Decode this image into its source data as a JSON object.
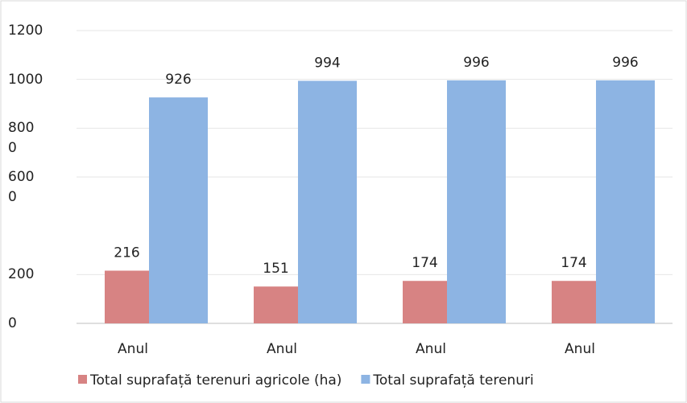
{
  "chart_data": {
    "type": "bar",
    "categories": [
      "Anul",
      "Anul",
      "Anul",
      "Anul"
    ],
    "series": [
      {
        "name": "Total suprafață terenuri agricole (ha)",
        "color": "#d78383",
        "values": [
          216,
          151,
          174,
          174
        ]
      },
      {
        "name": "Total suprafață terenuri",
        "color": "#8db4e3",
        "values": [
          926,
          994,
          996,
          996
        ]
      }
    ],
    "ylim": [
      0,
      1200
    ],
    "yticks": [
      0,
      200,
      {
        "value": 600,
        "label": "600\n0"
      },
      {
        "value": 800,
        "label": "800\n0"
      },
      1000,
      1200
    ],
    "grid": true,
    "legend": "bottom"
  }
}
